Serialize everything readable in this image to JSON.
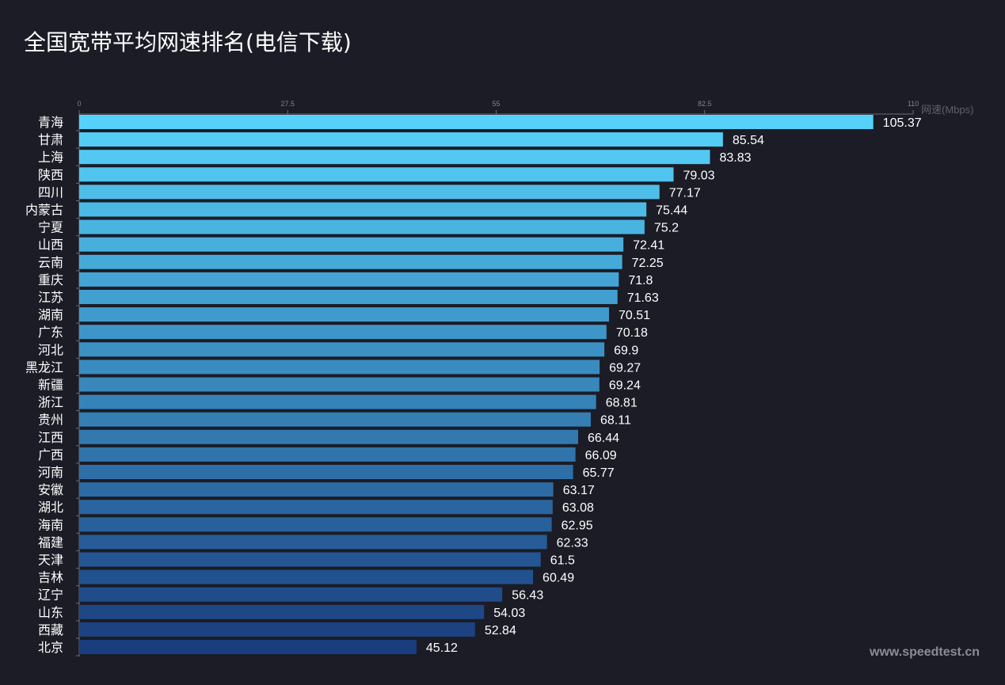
{
  "chart_data": {
    "type": "bar",
    "orientation": "horizontal",
    "title": "全国宽带平均网速排名(电信下载)",
    "xlabel": "网速(Mbps)",
    "xlim": [
      0,
      110
    ],
    "xticks": [
      "0",
      "27.5",
      "55",
      "82.5",
      "110"
    ],
    "grid": false,
    "categories": [
      "青海",
      "甘肃",
      "上海",
      "陕西",
      "四川",
      "内蒙古",
      "宁夏",
      "山西",
      "云南",
      "重庆",
      "江苏",
      "湖南",
      "广东",
      "河北",
      "黑龙江",
      "新疆",
      "浙江",
      "贵州",
      "江西",
      "广西",
      "河南",
      "安徽",
      "湖北",
      "海南",
      "福建",
      "天津",
      "吉林",
      "辽宁",
      "山东",
      "西藏",
      "北京"
    ],
    "values": [
      105.37,
      85.54,
      83.83,
      79.03,
      77.17,
      75.44,
      75.2,
      72.41,
      72.25,
      71.8,
      71.63,
      70.51,
      70.18,
      69.9,
      69.27,
      69.24,
      68.81,
      68.11,
      66.44,
      66.09,
      65.77,
      63.17,
      63.08,
      62.95,
      62.33,
      61.5,
      60.49,
      56.43,
      54.03,
      52.84,
      45.12
    ],
    "value_labels": [
      "105.37",
      "85.54",
      "83.83",
      "79.03",
      "77.17",
      "75.44",
      "75.2",
      "72.41",
      "72.25",
      "71.8",
      "71.63",
      "70.51",
      "70.18",
      "69.9",
      "69.27",
      "69.24",
      "68.81",
      "68.11",
      "66.44",
      "66.09",
      "65.77",
      "63.17",
      "63.08",
      "62.95",
      "62.33",
      "61.5",
      "60.49",
      "56.43",
      "54.03",
      "52.84",
      "45.12"
    ],
    "colors": {
      "top": "#56d2fa",
      "bottom": "#1a3d7e",
      "background": "#1b1c26"
    }
  },
  "watermark": "www.speedtest.cn"
}
